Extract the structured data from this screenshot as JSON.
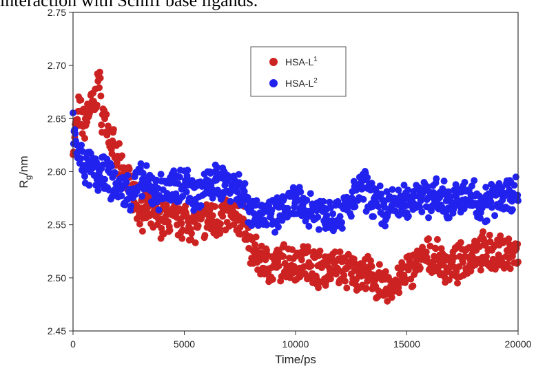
{
  "caption": "interaction with Schiff base ligands.",
  "chart_data": {
    "type": "scatter",
    "xlabel": "Time/ps",
    "ylabel_main": "R",
    "ylabel_sub": "g",
    "ylabel_suffix": "/nm",
    "xlim": [
      0,
      20000
    ],
    "ylim": [
      2.45,
      2.75
    ],
    "xticks": [
      0,
      5000,
      10000,
      15000,
      20000
    ],
    "yticks": [
      2.45,
      2.5,
      2.55,
      2.6,
      2.65,
      2.7,
      2.75
    ],
    "xtick_labels": [
      "0",
      "5000",
      "10000",
      "15000",
      "20000"
    ],
    "ytick_labels": [
      "2.45",
      "2.50",
      "2.55",
      "2.60",
      "2.65",
      "2.70",
      "2.75"
    ],
    "grid": false,
    "legend_position": "top-center",
    "series": [
      {
        "name_main": "HSA-L",
        "name_sup": "1",
        "color": "#cc2222",
        "x": [
          0,
          250,
          500,
          750,
          1000,
          1150,
          1300,
          1500,
          1750,
          2000,
          2250,
          2500,
          3000,
          3500,
          4000,
          4500,
          5000,
          5500,
          6000,
          6500,
          7000,
          7500,
          7800,
          8000,
          8500,
          9000,
          9500,
          10000,
          10500,
          11000,
          11500,
          12000,
          12500,
          13000,
          13500,
          14000,
          14500,
          15000,
          15500,
          16000,
          16500,
          17000,
          17500,
          18000,
          18500,
          19000,
          19500,
          20000
        ],
        "y": [
          2.625,
          2.655,
          2.645,
          2.66,
          2.665,
          2.69,
          2.655,
          2.645,
          2.625,
          2.61,
          2.6,
          2.59,
          2.565,
          2.56,
          2.555,
          2.555,
          2.555,
          2.55,
          2.555,
          2.555,
          2.56,
          2.555,
          2.55,
          2.525,
          2.515,
          2.51,
          2.515,
          2.515,
          2.515,
          2.51,
          2.51,
          2.51,
          2.505,
          2.505,
          2.5,
          2.49,
          2.495,
          2.505,
          2.515,
          2.52,
          2.515,
          2.51,
          2.515,
          2.525,
          2.525,
          2.52,
          2.525,
          2.52
        ]
      },
      {
        "name_main": "HSA-L",
        "name_sup": "2",
        "color": "#2222ee",
        "x": [
          0,
          250,
          500,
          1000,
          1500,
          2000,
          2500,
          3000,
          3500,
          4000,
          4500,
          5000,
          5500,
          6000,
          6500,
          7000,
          7500,
          8000,
          8500,
          9000,
          9500,
          10000,
          10500,
          11000,
          11500,
          12000,
          12500,
          13000,
          13500,
          14000,
          14500,
          15000,
          15500,
          16000,
          16500,
          17000,
          17500,
          18000,
          18500,
          19000,
          19500,
          20000
        ],
        "y": [
          2.64,
          2.615,
          2.605,
          2.6,
          2.595,
          2.585,
          2.58,
          2.59,
          2.585,
          2.58,
          2.585,
          2.59,
          2.58,
          2.585,
          2.59,
          2.59,
          2.585,
          2.565,
          2.56,
          2.555,
          2.565,
          2.57,
          2.565,
          2.565,
          2.56,
          2.56,
          2.57,
          2.585,
          2.575,
          2.565,
          2.57,
          2.57,
          2.58,
          2.575,
          2.575,
          2.57,
          2.575,
          2.575,
          2.57,
          2.575,
          2.58,
          2.58
        ]
      }
    ]
  }
}
